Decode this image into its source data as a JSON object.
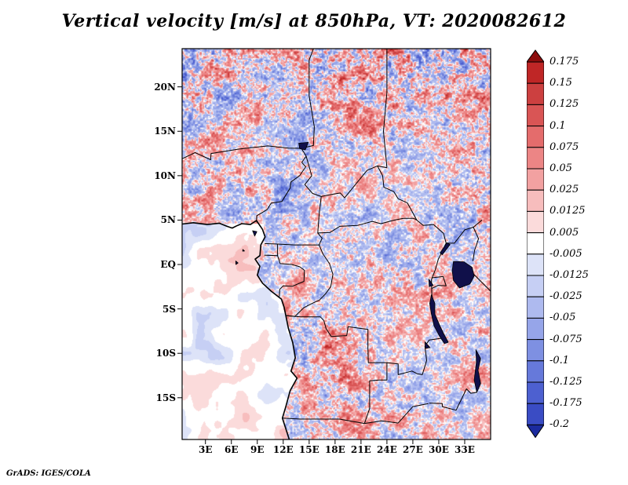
{
  "title": "Vertical velocity [m/s] at 850hPa, VT: 2020082612",
  "footer": "GrADS: IGES/COLA",
  "axes": {
    "y_ticks": [
      "20N",
      "15N",
      "10N",
      "5N",
      "EQ",
      "5S",
      "10S",
      "15S"
    ],
    "x_ticks": [
      "3E",
      "6E",
      "9E",
      "12E",
      "15E",
      "18E",
      "21E",
      "24E",
      "27E",
      "30E",
      "33E"
    ]
  },
  "colorbar": {
    "labels": [
      "0.175",
      "0.15",
      "0.125",
      "0.1",
      "0.075",
      "0.05",
      "0.025",
      "0.0125",
      "0.005",
      "-0.005",
      "-0.0125",
      "-0.025",
      "-0.05",
      "-0.075",
      "-0.1",
      "-0.125",
      "-0.175",
      "-0.2"
    ],
    "colors": [
      "#8c0d0d",
      "#bf2626",
      "#cc4040",
      "#d95555",
      "#e46c6c",
      "#ec8585",
      "#f2a1a1",
      "#f7bdbd",
      "#fbdbdb",
      "#ffffff",
      "#dde3f8",
      "#c6cff4",
      "#aebaef",
      "#96a5e9",
      "#7e90e2",
      "#6679da",
      "#4d60d0",
      "#3a4cc4",
      "#1b2a9e"
    ]
  },
  "chart_data": {
    "type": "heatmap",
    "title": "Vertical velocity [m/s] at 850hPa, VT: 2020082612",
    "variable": "Vertical velocity",
    "units": "m/s",
    "level": "850hPa",
    "valid_time": "2020082612",
    "renderer": "GrADS: IGES/COLA",
    "x_range": [
      0.3,
      36.0
    ],
    "y_range": [
      -19.7,
      24.3
    ],
    "x_tick_values": [
      3,
      6,
      9,
      12,
      15,
      18,
      21,
      24,
      27,
      30,
      33
    ],
    "y_tick_values": [
      20,
      15,
      10,
      5,
      0,
      -5,
      -10,
      -15
    ],
    "levels": [
      -0.2,
      -0.175,
      -0.125,
      -0.1,
      -0.075,
      -0.05,
      -0.025,
      -0.0125,
      -0.005,
      0.005,
      0.0125,
      0.025,
      0.05,
      0.075,
      0.1,
      0.125,
      0.15,
      0.175
    ],
    "palette_top_to_bottom": [
      "#8c0d0d",
      "#bf2626",
      "#cc4040",
      "#d95555",
      "#e46c6c",
      "#ec8585",
      "#f2a1a1",
      "#f7bdbd",
      "#fbdbdb",
      "#ffffff",
      "#dde3f8",
      "#c6cff4",
      "#aebaef",
      "#96a5e9",
      "#7e90e2",
      "#6679da",
      "#4d60d0",
      "#3a4cc4",
      "#1b2a9e"
    ],
    "legend_position": "right",
    "grid": false,
    "map_colors": {
      "border": "#000000",
      "lake_fill": "#10104a"
    },
    "field_description": "Fine-grained speckled vertical-velocity field (red = upward positive, blue = downward negative) over central Africa (~0E-36E, 20S-24N) with political borders, coastline and lakes overlaid; smooth near-zero values over the Atlantic Ocean in the lower-left; individual grid-point values are not resolvable."
  }
}
